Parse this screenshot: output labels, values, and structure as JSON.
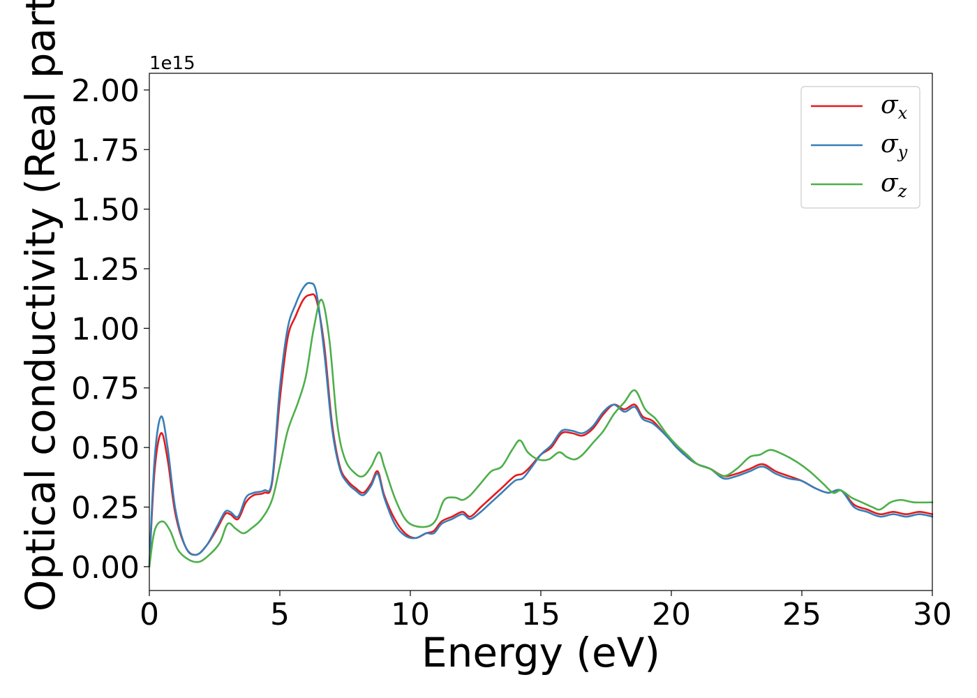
{
  "chart_data": {
    "type": "line",
    "xlabel": "Energy (eV)",
    "ylabel": "Optical conductivity (Real part)",
    "y_offset_label": "1e15",
    "xlim": [
      0,
      30
    ],
    "ylim": [
      -0.1,
      2.07
    ],
    "x_ticks": [
      0,
      5,
      10,
      15,
      20,
      25,
      30
    ],
    "x_tick_labels": [
      "0",
      "5",
      "10",
      "15",
      "20",
      "25",
      "30"
    ],
    "y_ticks": [
      0.0,
      0.25,
      0.5,
      0.75,
      1.0,
      1.25,
      1.5,
      1.75,
      2.0
    ],
    "y_tick_labels": [
      "0.00",
      "0.25",
      "0.50",
      "0.75",
      "1.00",
      "1.25",
      "1.50",
      "1.75",
      "2.00"
    ],
    "grid": false,
    "legend_position": "top-right",
    "series": [
      {
        "name": "σx",
        "symbol": "σ",
        "subscript": "x",
        "color": "#e41a1c",
        "x": [
          0,
          0.2,
          0.45,
          0.7,
          1.0,
          1.4,
          1.8,
          2.2,
          2.6,
          2.9,
          3.1,
          3.4,
          3.7,
          4.0,
          4.4,
          4.7,
          5.0,
          5.3,
          5.6,
          5.9,
          6.15,
          6.4,
          6.7,
          7.0,
          7.3,
          7.6,
          7.9,
          8.2,
          8.5,
          8.75,
          9.0,
          9.4,
          9.8,
          10.2,
          10.6,
          10.9,
          11.2,
          11.6,
          12.0,
          12.3,
          12.7,
          13.0,
          13.5,
          14.0,
          14.3,
          14.6,
          15.0,
          15.4,
          15.8,
          16.2,
          16.6,
          17.0,
          17.4,
          17.8,
          18.2,
          18.6,
          18.9,
          19.3,
          19.8,
          20.2,
          20.6,
          21.0,
          21.5,
          22.0,
          22.5,
          23.0,
          23.5,
          24.0,
          24.5,
          25.0,
          25.5,
          26.0,
          26.5,
          27.0,
          27.5,
          28.0,
          28.5,
          29.0,
          29.5,
          30.0
        ],
        "y": [
          0.0,
          0.4,
          0.56,
          0.45,
          0.22,
          0.08,
          0.05,
          0.09,
          0.16,
          0.22,
          0.22,
          0.2,
          0.27,
          0.3,
          0.31,
          0.35,
          0.7,
          0.96,
          1.05,
          1.12,
          1.14,
          1.12,
          0.93,
          0.6,
          0.42,
          0.36,
          0.33,
          0.31,
          0.35,
          0.4,
          0.3,
          0.2,
          0.14,
          0.12,
          0.14,
          0.15,
          0.19,
          0.21,
          0.23,
          0.21,
          0.25,
          0.28,
          0.33,
          0.38,
          0.39,
          0.42,
          0.47,
          0.5,
          0.56,
          0.56,
          0.55,
          0.58,
          0.64,
          0.68,
          0.66,
          0.68,
          0.63,
          0.61,
          0.55,
          0.51,
          0.46,
          0.43,
          0.41,
          0.38,
          0.39,
          0.41,
          0.43,
          0.4,
          0.38,
          0.36,
          0.33,
          0.31,
          0.32,
          0.26,
          0.24,
          0.22,
          0.23,
          0.22,
          0.23,
          0.22
        ]
      },
      {
        "name": "σy",
        "symbol": "σ",
        "subscript": "y",
        "color": "#377eb8",
        "x": [
          0,
          0.2,
          0.45,
          0.7,
          1.0,
          1.4,
          1.8,
          2.2,
          2.6,
          2.9,
          3.1,
          3.4,
          3.7,
          4.0,
          4.4,
          4.7,
          5.0,
          5.3,
          5.6,
          5.9,
          6.15,
          6.4,
          6.7,
          7.0,
          7.3,
          7.6,
          7.9,
          8.2,
          8.5,
          8.75,
          9.0,
          9.4,
          9.8,
          10.2,
          10.6,
          10.9,
          11.2,
          11.6,
          12.0,
          12.3,
          12.7,
          13.0,
          13.5,
          14.0,
          14.3,
          14.6,
          15.0,
          15.4,
          15.8,
          16.2,
          16.6,
          17.0,
          17.4,
          17.8,
          18.2,
          18.6,
          18.9,
          19.3,
          19.8,
          20.2,
          20.6,
          21.0,
          21.5,
          22.0,
          22.5,
          23.0,
          23.5,
          24.0,
          24.5,
          25.0,
          25.5,
          26.0,
          26.5,
          27.0,
          27.5,
          28.0,
          28.5,
          29.0,
          29.5,
          30.0
        ],
        "y": [
          0.0,
          0.45,
          0.63,
          0.5,
          0.24,
          0.08,
          0.05,
          0.09,
          0.17,
          0.23,
          0.23,
          0.21,
          0.29,
          0.31,
          0.32,
          0.36,
          0.75,
          1.0,
          1.1,
          1.17,
          1.19,
          1.15,
          0.9,
          0.58,
          0.41,
          0.35,
          0.32,
          0.3,
          0.34,
          0.39,
          0.29,
          0.18,
          0.13,
          0.12,
          0.14,
          0.14,
          0.18,
          0.2,
          0.22,
          0.2,
          0.23,
          0.26,
          0.31,
          0.36,
          0.37,
          0.41,
          0.47,
          0.51,
          0.57,
          0.57,
          0.56,
          0.59,
          0.65,
          0.68,
          0.65,
          0.67,
          0.62,
          0.6,
          0.55,
          0.5,
          0.46,
          0.43,
          0.41,
          0.37,
          0.38,
          0.4,
          0.42,
          0.39,
          0.37,
          0.36,
          0.33,
          0.31,
          0.32,
          0.25,
          0.23,
          0.21,
          0.22,
          0.21,
          0.22,
          0.21
        ]
      },
      {
        "name": "σz",
        "symbol": "σ",
        "subscript": "z",
        "color": "#4daf4a",
        "x": [
          0,
          0.2,
          0.5,
          0.8,
          1.1,
          1.5,
          1.9,
          2.3,
          2.7,
          3.0,
          3.3,
          3.6,
          3.9,
          4.3,
          4.7,
          5.0,
          5.3,
          5.7,
          6.0,
          6.3,
          6.6,
          6.9,
          7.2,
          7.5,
          7.9,
          8.2,
          8.5,
          8.8,
          9.0,
          9.4,
          9.8,
          10.2,
          10.7,
          11.0,
          11.3,
          11.7,
          12.0,
          12.3,
          12.7,
          13.1,
          13.5,
          13.9,
          14.2,
          14.5,
          14.9,
          15.3,
          15.7,
          16.0,
          16.3,
          16.6,
          17.0,
          17.4,
          17.8,
          18.2,
          18.6,
          19.0,
          19.4,
          19.8,
          20.2,
          20.6,
          21.0,
          21.5,
          22.0,
          22.5,
          23.0,
          23.4,
          23.8,
          24.3,
          24.8,
          25.3,
          25.8,
          26.2,
          26.5,
          26.9,
          27.3,
          27.7,
          28.0,
          28.4,
          28.8,
          29.3,
          30.0
        ],
        "y": [
          0.0,
          0.15,
          0.19,
          0.15,
          0.07,
          0.03,
          0.02,
          0.05,
          0.1,
          0.18,
          0.16,
          0.14,
          0.16,
          0.2,
          0.28,
          0.42,
          0.57,
          0.69,
          0.8,
          1.0,
          1.12,
          0.95,
          0.6,
          0.45,
          0.39,
          0.38,
          0.42,
          0.48,
          0.42,
          0.29,
          0.2,
          0.17,
          0.17,
          0.2,
          0.28,
          0.29,
          0.28,
          0.3,
          0.35,
          0.4,
          0.42,
          0.49,
          0.53,
          0.48,
          0.45,
          0.45,
          0.48,
          0.46,
          0.45,
          0.47,
          0.52,
          0.57,
          0.64,
          0.69,
          0.74,
          0.66,
          0.62,
          0.56,
          0.51,
          0.47,
          0.43,
          0.41,
          0.38,
          0.41,
          0.46,
          0.47,
          0.49,
          0.47,
          0.44,
          0.4,
          0.35,
          0.31,
          0.32,
          0.29,
          0.27,
          0.25,
          0.24,
          0.27,
          0.28,
          0.27,
          0.27
        ]
      }
    ]
  }
}
